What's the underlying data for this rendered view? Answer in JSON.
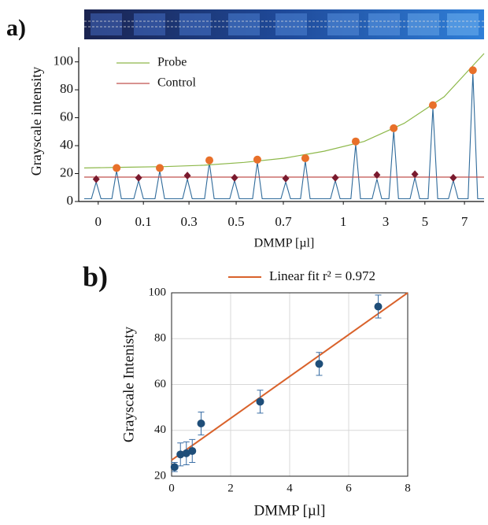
{
  "chart_data": [
    {
      "type": "line",
      "panel_label": "a)",
      "ylabel": "Grayscale intensity",
      "xlabel": "DMMP [µl]",
      "xlim": [
        0,
        100
      ],
      "ylim": [
        0,
        115
      ],
      "grid": false,
      "xticks": [
        {
          "value": 3.5,
          "label": "0"
        },
        {
          "value": 14.8,
          "label": "0.1"
        },
        {
          "value": 26.2,
          "label": "0.3"
        },
        {
          "value": 38.0,
          "label": "0.5"
        },
        {
          "value": 49.8,
          "label": "0.7"
        },
        {
          "value": 64.8,
          "label": "1"
        },
        {
          "value": 75.4,
          "label": "3"
        },
        {
          "value": 85.2,
          "label": "5"
        },
        {
          "value": 95.1,
          "label": "7"
        }
      ],
      "yticks": [
        0,
        20,
        40,
        60,
        80,
        100
      ],
      "series": [
        {
          "name": "Probe",
          "color": "#8db84a",
          "x": [
            0,
            10,
            20,
            30,
            40,
            50,
            60,
            70,
            80,
            90,
            100
          ],
          "values": [
            24,
            24.5,
            25,
            26,
            28,
            31,
            36,
            43,
            56,
            75,
            106
          ]
        },
        {
          "name": "Control",
          "color": "#c0504d",
          "x": [
            0,
            100
          ],
          "values": [
            17.5,
            17.5
          ]
        }
      ],
      "points": [
        {
          "color": "#e8702a",
          "marker": "circle",
          "x": [
            8.1,
            18.9,
            31.3,
            43.3,
            55.3,
            67.9,
            77.4,
            87.2,
            97.2
          ],
          "values": [
            24,
            24,
            29.5,
            30,
            31,
            43,
            52.5,
            69,
            94
          ]
        },
        {
          "color": "#7a1a2e",
          "marker": "diamond",
          "x": [
            3.0,
            13.6,
            25.8,
            37.6,
            50.4,
            62.8,
            73.2,
            82.7,
            92.3
          ],
          "values": [
            16,
            17,
            18.5,
            17,
            16.5,
            17,
            19,
            19.5,
            17
          ]
        }
      ],
      "trace": {
        "color": "#2e6a9a",
        "x": [
          0,
          1.8,
          3.0,
          4.2,
          6.9,
          8.1,
          9.3,
          12.4,
          13.6,
          14.8,
          17.7,
          18.9,
          20.1,
          24.6,
          25.8,
          27.0,
          30.1,
          31.3,
          32.5,
          36.4,
          37.6,
          38.8,
          42.1,
          43.3,
          44.5,
          49.2,
          50.4,
          51.6,
          54.1,
          55.3,
          56.5,
          61.6,
          62.8,
          64.0,
          66.7,
          67.9,
          69.1,
          72.0,
          73.2,
          74.4,
          76.2,
          77.4,
          78.6,
          81.5,
          82.7,
          83.9,
          86.0,
          87.2,
          88.4,
          91.1,
          92.3,
          93.5,
          96.0,
          97.2,
          98.4,
          100
        ],
        "values": [
          2,
          2,
          14,
          2,
          2,
          22,
          2,
          2,
          15,
          2,
          2,
          22,
          2,
          2,
          16,
          2,
          2,
          28,
          2,
          2,
          15,
          2,
          2,
          28,
          2,
          2,
          14,
          2,
          2,
          29,
          2,
          2,
          15,
          2,
          2,
          41,
          2,
          2,
          16,
          2,
          2,
          51,
          2,
          2,
          17,
          2,
          2,
          67,
          2,
          2,
          15,
          2,
          2,
          92,
          2,
          2
        ]
      }
    },
    {
      "type": "scatter",
      "panel_label": "b)",
      "ylabel": "Grayscale Intenisty",
      "xlabel": "DMMP [µl]",
      "xlim": [
        0,
        8
      ],
      "ylim": [
        20,
        100
      ],
      "grid": true,
      "xticks": [
        0,
        2,
        4,
        6,
        8
      ],
      "yticks": [
        20,
        40,
        60,
        80,
        100
      ],
      "series": [
        {
          "name": "Linear fit r² = 0.972",
          "color": "#d9622b",
          "x": [
            0,
            8
          ],
          "values": [
            27,
            100
          ]
        }
      ],
      "points": [
        {
          "color": "#1f4e79",
          "marker": "circle",
          "x": [
            0.1,
            0.3,
            0.5,
            0.7,
            1,
            3,
            5,
            7
          ],
          "values": [
            24,
            29.5,
            30,
            31,
            43,
            52.5,
            69,
            94
          ],
          "errors": [
            2,
            5,
            5,
            5,
            5,
            5,
            5,
            5
          ]
        }
      ]
    }
  ]
}
